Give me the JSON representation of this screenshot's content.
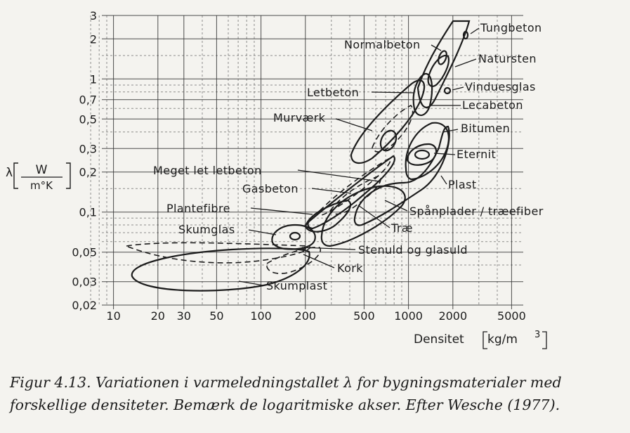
{
  "chart_data": {
    "type": "area",
    "x_scale": "log",
    "y_scale": "log",
    "xlim": [
      6,
      6000
    ],
    "ylim": [
      0.02,
      3
    ],
    "x_ticks": [
      10,
      20,
      30,
      50,
      100,
      200,
      500,
      1000,
      2000,
      5000
    ],
    "x_tick_labels": [
      "10",
      "20",
      "30",
      "50",
      "100",
      "200",
      "500",
      "1000",
      "2000",
      "5000"
    ],
    "y_ticks": [
      0.02,
      0.03,
      0.05,
      0.1,
      0.2,
      0.3,
      0.5,
      0.7,
      1,
      2,
      3
    ],
    "y_tick_labels": [
      "0,02",
      "0,03",
      "0,05",
      "0,1",
      "0,2",
      "0,3",
      "0,5",
      "0,7",
      "1",
      "2",
      "3"
    ],
    "xlabel": "Densitet",
    "xlabel_unit": "kg/m",
    "xlabel_unit_exp": "3",
    "ylabel_symbol": "λ",
    "ylabel_num": "W",
    "ylabel_den": "m°K",
    "grid": true,
    "series": [
      {
        "name": "Tungbeton",
        "density_range": [
          3000,
          4500
        ],
        "lambda_range": [
          1.3,
          3
        ]
      },
      {
        "name": "Normalbeton",
        "density_range": [
          1700,
          3000
        ],
        "lambda_range": [
          0.9,
          2.5
        ]
      },
      {
        "name": "Natursten",
        "density_range": [
          1500,
          3000
        ],
        "lambda_range": [
          0.5,
          3
        ]
      },
      {
        "name": "Vinduesglas",
        "density_range": [
          2500,
          2500
        ],
        "lambda_range": [
          0.8,
          0.8
        ]
      },
      {
        "name": "Lecabeton",
        "density_range": [
          1400,
          1800
        ],
        "lambda_range": [
          0.5,
          0.9
        ]
      },
      {
        "name": "Letbeton",
        "density_range": [
          500,
          1700
        ],
        "lambda_range": [
          0.2,
          1.0
        ]
      },
      {
        "name": "Murværk",
        "density_range": [
          1000,
          2000
        ],
        "lambda_range": [
          0.3,
          1.0
        ]
      },
      {
        "name": "Bitumen",
        "density_range": [
          1500,
          2200
        ],
        "lambda_range": [
          0.2,
          0.5
        ]
      },
      {
        "name": "Eternit",
        "density_range": [
          1500,
          2000
        ],
        "lambda_range": [
          0.22,
          0.35
        ]
      },
      {
        "name": "Plast",
        "density_range": [
          700,
          2500
        ],
        "lambda_range": [
          0.12,
          0.5
        ]
      },
      {
        "name": "Meget let letbeton",
        "density_range": [
          250,
          800
        ],
        "lambda_range": [
          0.07,
          0.25
        ]
      },
      {
        "name": "Gasbeton",
        "density_range": [
          300,
          1000
        ],
        "lambda_range": [
          0.07,
          0.3
        ]
      },
      {
        "name": "Plantefibre",
        "density_range": [
          150,
          600
        ],
        "lambda_range": [
          0.05,
          0.15
        ]
      },
      {
        "name": "Spånplader / træefiber",
        "density_range": [
          300,
          1000
        ],
        "lambda_range": [
          0.05,
          0.2
        ]
      },
      {
        "name": "Træ",
        "density_range": [
          300,
          900
        ],
        "lambda_range": [
          0.08,
          0.25
        ]
      },
      {
        "name": "Skumglas",
        "density_range": [
          100,
          200
        ],
        "lambda_range": [
          0.048,
          0.065
        ]
      },
      {
        "name": "Stenuld og glasuld",
        "density_range": [
          8,
          200
        ],
        "lambda_range": [
          0.033,
          0.055
        ]
      },
      {
        "name": "Kork",
        "density_range": [
          100,
          250
        ],
        "lambda_range": [
          0.035,
          0.05
        ]
      },
      {
        "name": "Skumplast",
        "density_range": [
          10,
          200
        ],
        "lambda_range": [
          0.025,
          0.05
        ]
      }
    ]
  },
  "caption": {
    "line1": "Figur 4.13. Variationen i varmeledningstallet λ for bygningsmaterialer med",
    "line2": "forskellige densiteter. Bemærk de logaritmiske akser. Efter Wesche (1977)."
  }
}
